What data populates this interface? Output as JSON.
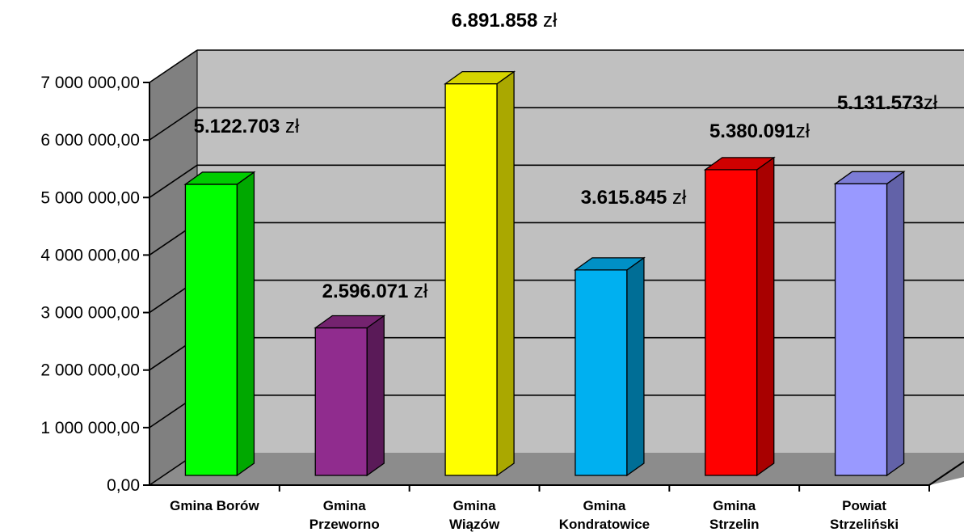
{
  "chart_data": {
    "type": "bar",
    "style": "3d-column",
    "categories": [
      [
        "Gmina Borów"
      ],
      [
        "Gmina",
        "Przeworno"
      ],
      [
        "Gmina",
        "Wiązów"
      ],
      [
        "Gmina",
        "Kondratowice"
      ],
      [
        "Gmina",
        "Strzelin"
      ],
      [
        "Powiat",
        "Strzeliński"
      ]
    ],
    "values": [
      5122703,
      2596071,
      6891858,
      3615845,
      5380091,
      5131573
    ],
    "data_labels": [
      {
        "number": "5.122.703",
        "unit": " zł"
      },
      {
        "number": "2.596.071",
        "unit": " zł"
      },
      {
        "number": "6.891.858",
        "unit": " zł"
      },
      {
        "number": "3.615.845",
        "unit": " zł"
      },
      {
        "number": "5.380.091",
        "unit": "zł"
      },
      {
        "number": "5.131.573",
        "unit": "zł"
      }
    ],
    "colors": [
      {
        "front": "#00ff00",
        "side": "#00a800",
        "top": "#00cc00"
      },
      {
        "front": "#902c8e",
        "side": "#5a1a58",
        "top": "#74236f"
      },
      {
        "front": "#ffff00",
        "side": "#aaa800",
        "top": "#d6d400"
      },
      {
        "front": "#00b0f0",
        "side": "#006e96",
        "top": "#0090c6"
      },
      {
        "front": "#ff0000",
        "side": "#a80000",
        "top": "#d00000"
      },
      {
        "front": "#9999ff",
        "side": "#6262a8",
        "top": "#7c7cd6"
      }
    ],
    "y_ticks": [
      "0,00",
      "1 000 000,00",
      "2 000 000,00",
      "3 000 000,00",
      "4 000 000,00",
      "5 000 000,00",
      "6 000 000,00",
      "7 000 000,00"
    ],
    "ylim": [
      0,
      7000000
    ],
    "grid": true,
    "wall_color": "#c0c0c0",
    "floor_color": "#8c8c8c",
    "side_wall_color": "#808080",
    "title": "",
    "xlabel": "",
    "ylabel": ""
  }
}
